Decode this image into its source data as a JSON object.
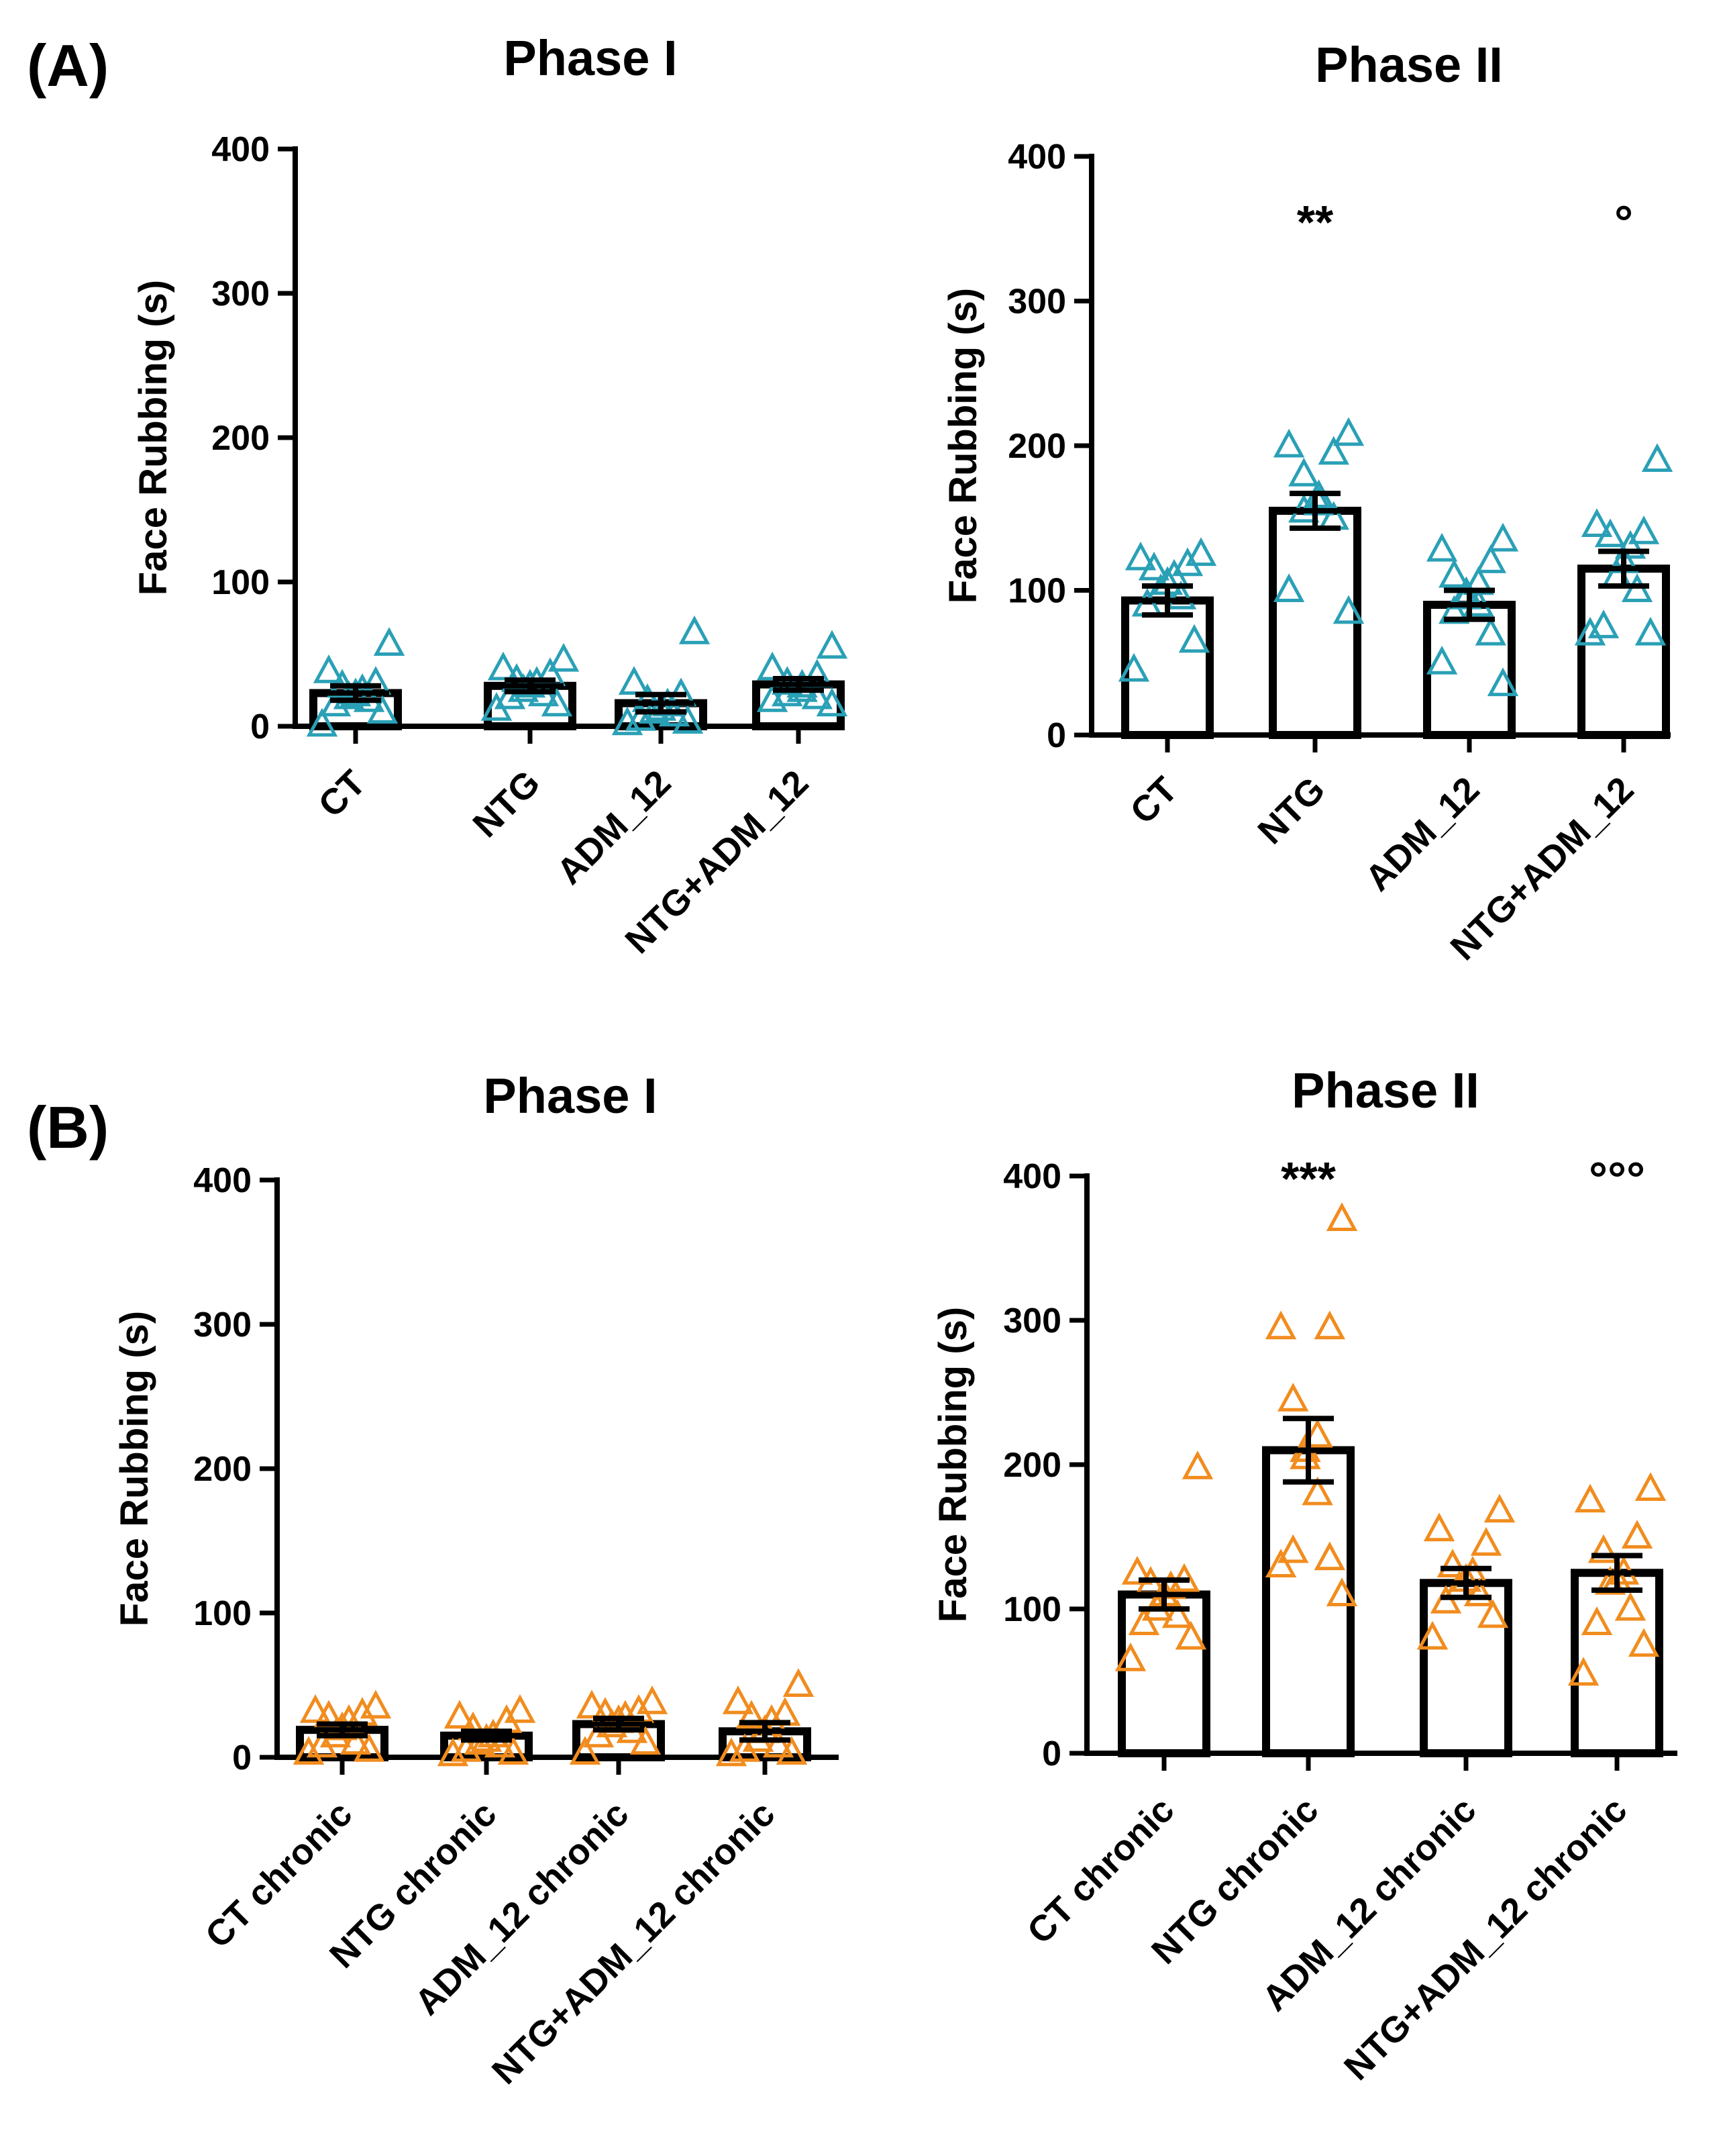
{
  "panel_labels": [
    "(A)",
    "(B)"
  ],
  "colors": {
    "teal": "#2aa0b6",
    "orange": "#f18c1e",
    "axis": "#000000"
  },
  "chart_data": [
    {
      "type": "bar",
      "panel": "(A)",
      "title": "Phase I",
      "ylabel": "Face Rubbing (s)",
      "xlabel": "",
      "ylim": [
        0,
        400
      ],
      "yticks": [
        0,
        100,
        200,
        300,
        400
      ],
      "categories": [
        "CT",
        "NTG",
        "ADM_12",
        "NTG+ADM_12"
      ],
      "values": [
        23,
        28,
        16,
        29
      ],
      "sem": [
        5,
        4,
        6,
        4
      ],
      "points": [
        [
          57,
          38,
          30,
          28,
          25,
          22,
          20,
          18,
          15,
          10,
          1
        ],
        [
          46,
          40,
          36,
          32,
          30,
          28,
          25,
          22,
          20,
          15,
          12
        ],
        [
          65,
          30,
          22,
          18,
          15,
          12,
          10,
          8,
          5,
          3,
          2
        ],
        [
          55,
          40,
          35,
          30,
          28,
          25,
          22,
          20,
          18,
          15
        ]
      ],
      "marker_color": "#2aa0b6",
      "significance": [
        "",
        "",
        "",
        ""
      ]
    },
    {
      "type": "bar",
      "panel": "(A)",
      "title": "Phase II",
      "ylabel": "Face Rubbing (s)",
      "xlabel": "",
      "ylim": [
        0,
        400
      ],
      "yticks": [
        0,
        100,
        200,
        300,
        400
      ],
      "categories": [
        "CT",
        "NTG",
        "ADM_12",
        "NTG+ADM_12"
      ],
      "values": [
        93,
        155,
        90,
        115
      ],
      "sem": [
        10,
        12,
        10,
        12
      ],
      "points": [
        [
          125,
          122,
          118,
          115,
          110,
          105,
          100,
          95,
          90,
          65,
          45
        ],
        [
          208,
          200,
          195,
          180,
          165,
          160,
          155,
          150,
          100,
          85
        ],
        [
          135,
          128,
          120,
          110,
          105,
          98,
          95,
          90,
          85,
          70,
          50,
          35
        ],
        [
          190,
          145,
          140,
          138,
          130,
          120,
          110,
          100,
          75,
          70,
          70
        ]
      ],
      "marker_color": "#2aa0b6",
      "significance": [
        "",
        "**",
        "",
        "°"
      ]
    },
    {
      "type": "bar",
      "panel": "(B)",
      "title": "Phase I",
      "ylabel": "Face Rubbing (s)",
      "xlabel": "",
      "ylim": [
        0,
        400
      ],
      "yticks": [
        0,
        100,
        200,
        300,
        400
      ],
      "categories": [
        "CT chronic",
        "NTG chronic",
        "ADM_12 chronic",
        "NTG+ADM_12 chronic"
      ],
      "values": [
        19,
        15,
        23,
        18
      ],
      "sem": [
        4,
        3,
        4,
        6
      ],
      "points": [
        [
          35,
          32,
          30,
          28,
          25,
          20,
          15,
          10,
          8,
          5,
          3
        ],
        [
          32,
          28,
          25,
          20,
          15,
          12,
          10,
          8,
          5,
          3,
          2
        ],
        [
          38,
          35,
          32,
          30,
          28,
          25,
          22,
          18,
          15,
          10,
          3
        ],
        [
          50,
          38,
          30,
          28,
          25,
          18,
          12,
          8,
          5,
          3,
          2
        ]
      ],
      "marker_color": "#f18c1e",
      "significance": [
        "",
        "",
        "",
        ""
      ]
    },
    {
      "type": "bar",
      "panel": "(B)",
      "title": "Phase II",
      "ylabel": "Face Rubbing (s)",
      "xlabel": "",
      "ylim": [
        0,
        400
      ],
      "yticks": [
        0,
        100,
        200,
        300,
        400
      ],
      "categories": [
        "CT chronic",
        "NTG chronic",
        "ADM_12 chronic",
        "NTG+ADM_12 chronic"
      ],
      "values": [
        110,
        210,
        118,
        125
      ],
      "sem": [
        10,
        22,
        10,
        12
      ],
      "points": [
        [
          198,
          125,
          120,
          118,
          115,
          110,
          100,
          95,
          90,
          80,
          65
        ],
        [
          370,
          295,
          295,
          245,
          220,
          210,
          205,
          180,
          140,
          135,
          130,
          110
        ],
        [
          168,
          155,
          145,
          130,
          125,
          120,
          115,
          110,
          105,
          95,
          80
        ],
        [
          183,
          175,
          150,
          140,
          125,
          120,
          118,
          100,
          90,
          75,
          55
        ]
      ],
      "marker_color": "#f18c1e",
      "significance": [
        "",
        "***",
        "",
        "°°°"
      ]
    }
  ]
}
